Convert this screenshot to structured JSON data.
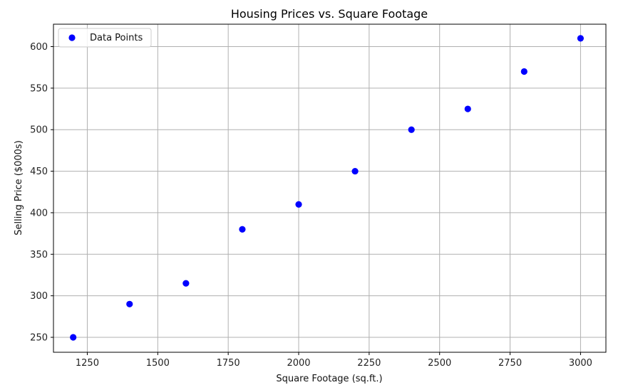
{
  "chart_data": {
    "type": "scatter",
    "title": "Housing Prices vs. Square Footage",
    "xlabel": "Square Footage (sq.ft.)",
    "ylabel": "Selling Price ($000s)",
    "xlim": [
      1130,
      3090
    ],
    "ylim": [
      232,
      627
    ],
    "xticks": [
      1250,
      1500,
      1750,
      2000,
      2250,
      2500,
      2750,
      3000
    ],
    "yticks": [
      250,
      300,
      350,
      400,
      450,
      500,
      550,
      600
    ],
    "grid": true,
    "legend_position": "top-left",
    "series": [
      {
        "name": "Data Points",
        "color": "#0000ff",
        "marker": "circle",
        "x": [
          1200,
          1400,
          1600,
          1800,
          2000,
          2200,
          2400,
          2600,
          2800,
          3000
        ],
        "y": [
          250,
          290,
          315,
          380,
          410,
          450,
          500,
          525,
          570,
          610
        ]
      }
    ]
  }
}
